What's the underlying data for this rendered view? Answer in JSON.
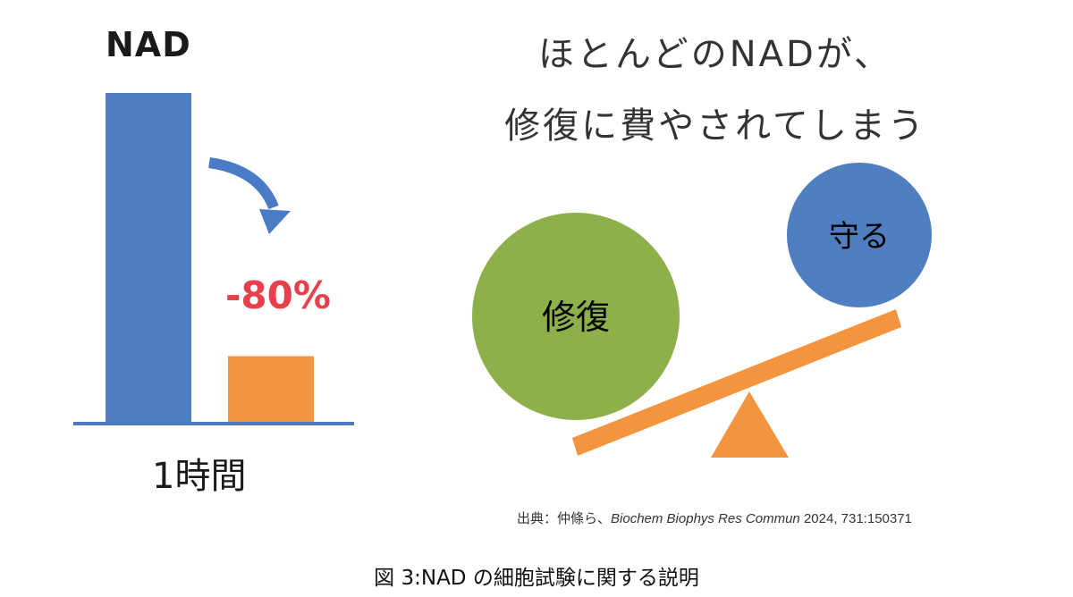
{
  "left_panel": {
    "title": "NAD",
    "change_label": "-80%",
    "x_label": "1時間"
  },
  "right_panel": {
    "headline_line1": "ほとんどのNADが、",
    "headline_line2": "修復に費やされてしまう",
    "big_circle_label": "修復",
    "small_circle_label": "守る"
  },
  "source": {
    "prefix": "出典：仲條ら、",
    "journal": "Biochem Biophys Res Commun",
    "citation": " 2024, 731:150371"
  },
  "caption": "図 3:NAD の細胞試験に関する説明",
  "colors": {
    "blue": "#4f7ec1",
    "orange": "#f5943f",
    "green": "#8db04a",
    "red": "#e8404a",
    "axis": "#4a78c4"
  },
  "chart_data": {
    "type": "bar",
    "categories": [
      "",
      "1時間"
    ],
    "values": [
      100,
      20
    ],
    "title": "NAD",
    "annotations": [
      "-80%"
    ]
  }
}
